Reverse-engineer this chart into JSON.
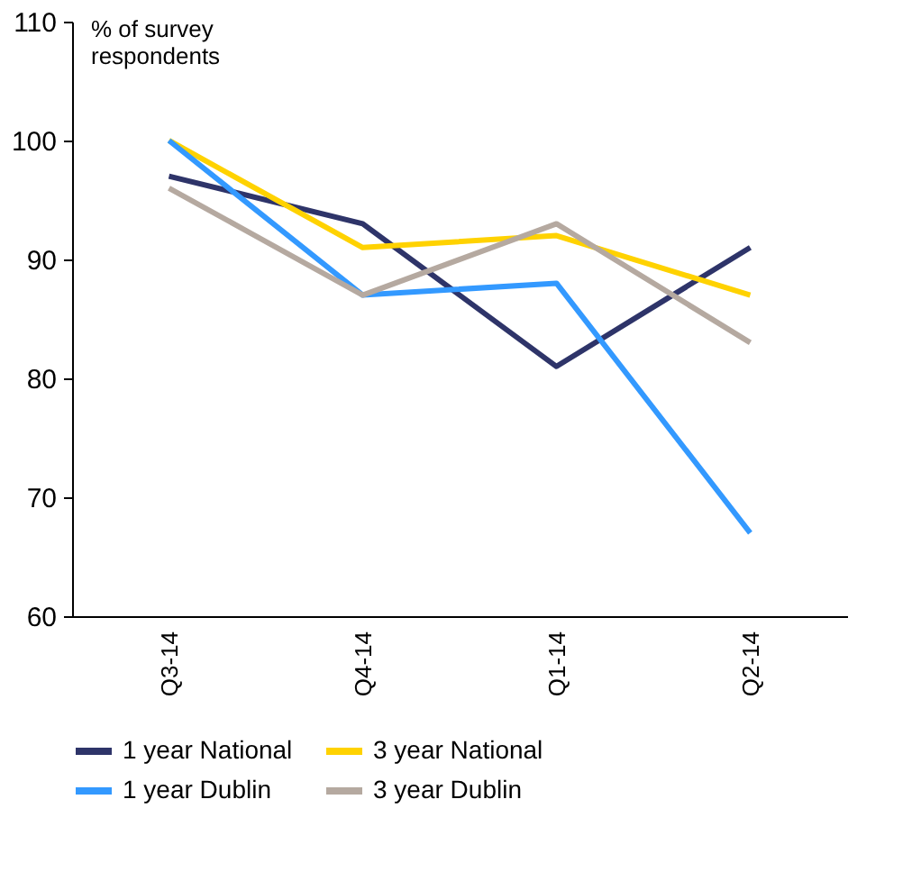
{
  "chart_data": {
    "type": "line",
    "ylabel": "% of survey respondents",
    "categories": [
      "Q3-14",
      "Q4-14",
      "Q1-14",
      "Q2-14"
    ],
    "series": [
      {
        "name": "1 year National",
        "color": "#2e3469",
        "values": [
          97,
          93,
          81,
          91
        ]
      },
      {
        "name": "3 year National",
        "color": "#ffd200",
        "values": [
          100,
          91,
          92,
          87
        ]
      },
      {
        "name": "1 year Dublin",
        "color": "#3399ff",
        "values": [
          100,
          87,
          88,
          67
        ]
      },
      {
        "name": "3 year Dublin",
        "color": "#b5a9a0",
        "values": [
          96,
          87,
          93,
          83
        ]
      }
    ],
    "ylim": [
      60,
      110
    ],
    "yticks": [
      60,
      70,
      80,
      90,
      100,
      110
    ],
    "grid": false,
    "legend": "bottom",
    "marker": "none",
    "line_style": "solid"
  }
}
